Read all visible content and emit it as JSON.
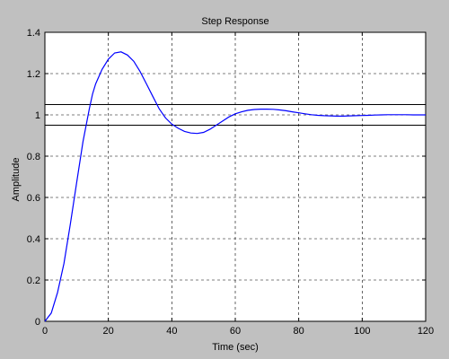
{
  "window": {
    "background": "#c0c0c0"
  },
  "chart_data": {
    "type": "line",
    "title": "Step Response",
    "xlabel": "Time (sec)",
    "ylabel": "Amplitude",
    "xlim": [
      0,
      120
    ],
    "ylim": [
      0,
      1.4
    ],
    "xticks": [
      0,
      20,
      40,
      60,
      80,
      100,
      120
    ],
    "yticks": [
      0,
      0.2,
      0.4,
      0.6,
      0.8,
      1,
      1.2,
      1.4
    ],
    "grid": true,
    "series": [
      {
        "color": "#0000ff",
        "x": [
          0,
          2,
          4,
          6,
          8,
          10,
          12,
          14,
          15,
          16,
          18,
          20,
          22,
          24,
          26,
          28,
          30,
          32,
          34,
          36,
          38,
          40,
          42,
          44,
          46,
          48,
          50,
          52,
          54,
          56,
          58,
          60,
          62,
          64,
          66,
          68,
          70,
          72,
          74,
          76,
          78,
          80,
          82,
          84,
          86,
          88,
          90,
          92,
          94,
          96,
          98,
          100,
          102,
          104,
          106,
          108,
          110,
          112,
          114,
          116,
          118,
          120
        ],
        "y": [
          0,
          0.04,
          0.14,
          0.28,
          0.47,
          0.67,
          0.87,
          1.03,
          1.1,
          1.15,
          1.22,
          1.27,
          1.3,
          1.305,
          1.29,
          1.26,
          1.21,
          1.15,
          1.09,
          1.03,
          0.985,
          0.955,
          0.935,
          0.92,
          0.912,
          0.91,
          0.915,
          0.93,
          0.95,
          0.97,
          0.99,
          1.005,
          1.015,
          1.022,
          1.026,
          1.028,
          1.028,
          1.027,
          1.024,
          1.02,
          1.015,
          1.01,
          1.005,
          1.001,
          0.998,
          0.996,
          0.995,
          0.994,
          0.994,
          0.995,
          0.996,
          0.997,
          0.998,
          0.999,
          1.0,
          1.001,
          1.001,
          1.001,
          1.001,
          1.0,
          1.0,
          1.0
        ]
      }
    ],
    "reference_lines": [
      {
        "y": 1.05,
        "color": "#000000",
        "style": "solid"
      },
      {
        "y": 0.95,
        "color": "#000000",
        "style": "solid"
      }
    ]
  }
}
